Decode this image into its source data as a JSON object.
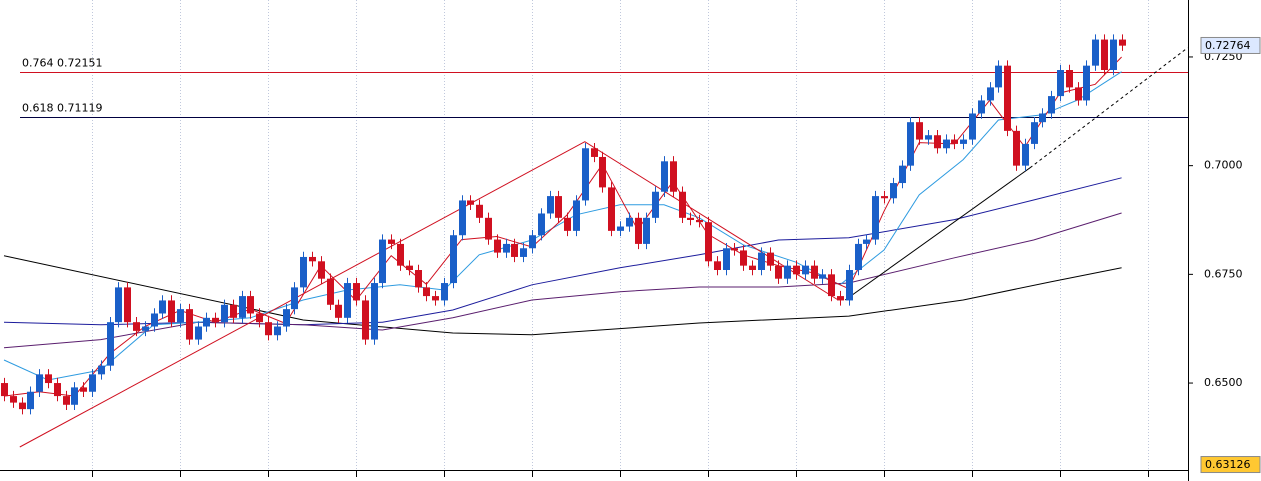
{
  "chart_data": {
    "type": "candlestick",
    "up_color": "#1a5fc8",
    "down_color": "#d01020",
    "open": [
      0.65,
      0.647,
      0.6455,
      0.644,
      0.648,
      0.652,
      0.65,
      0.647,
      0.645,
      0.649,
      0.648,
      0.652,
      0.654,
      0.664,
      0.672,
      0.664,
      0.662,
      0.663,
      0.666,
      0.669,
      0.664,
      0.667,
      0.66,
      0.663,
      0.665,
      0.664,
      0.668,
      0.665,
      0.67,
      0.666,
      0.664,
      0.661,
      0.663,
      0.667,
      0.672,
      0.679,
      0.678,
      0.674,
      0.668,
      0.665,
      0.673,
      0.669,
      0.66,
      0.673,
      0.683,
      0.682,
      0.677,
      0.676,
      0.672,
      0.67,
      0.669,
      0.673,
      0.684,
      0.692,
      0.691,
      0.688,
      0.683,
      0.68,
      0.682,
      0.679,
      0.681,
      0.684,
      0.689,
      0.693,
      0.688,
      0.685,
      0.692,
      0.704,
      0.702,
      0.695,
      0.685,
      0.686,
      0.688,
      0.682,
      0.688,
      0.694,
      0.701,
      0.694,
      0.688,
      0.6875,
      0.687,
      0.678,
      0.676,
      0.681,
      0.6805,
      0.677,
      0.676,
      0.68,
      0.677,
      0.674,
      0.677,
      0.675,
      0.677,
      0.674,
      0.675,
      0.67,
      0.669,
      0.676,
      0.682,
      0.683,
      0.693,
      0.6925,
      0.696,
      0.7,
      0.71,
      0.706,
      0.707,
      0.704,
      0.706,
      0.705,
      0.706,
      0.712,
      0.715,
      0.718,
      0.723,
      0.708,
      0.7,
      0.705,
      0.71,
      0.712,
      0.716,
      0.722,
      0.718,
      0.715,
      0.723,
      0.729,
      0.722,
      0.729
    ],
    "high": [
      0.6512,
      0.6482,
      0.6467,
      0.6492,
      0.6532,
      0.6532,
      0.6512,
      0.6482,
      0.6502,
      0.6502,
      0.6532,
      0.6552,
      0.6652,
      0.6732,
      0.6732,
      0.6652,
      0.6642,
      0.6672,
      0.6702,
      0.6702,
      0.6682,
      0.6682,
      0.6642,
      0.6662,
      0.6662,
      0.6692,
      0.6692,
      0.6712,
      0.6712,
      0.6672,
      0.6652,
      0.6642,
      0.6682,
      0.6732,
      0.6802,
      0.6802,
      0.6792,
      0.6752,
      0.6692,
      0.6742,
      0.6742,
      0.6702,
      0.6742,
      0.6842,
      0.6842,
      0.6832,
      0.6782,
      0.6772,
      0.6732,
      0.6712,
      0.6742,
      0.6852,
      0.6932,
      0.6932,
      0.6922,
      0.6892,
      0.6842,
      0.6832,
      0.6832,
      0.6822,
      0.6852,
      0.6902,
      0.6942,
      0.6942,
      0.6892,
      0.6932,
      0.7052,
      0.7052,
      0.7032,
      0.6962,
      0.6872,
      0.6892,
      0.6892,
      0.6892,
      0.6952,
      0.7022,
      0.7022,
      0.6952,
      0.6892,
      0.6887,
      0.6882,
      0.6792,
      0.6822,
      0.6822,
      0.6817,
      0.6782,
      0.6812,
      0.6812,
      0.6782,
      0.6782,
      0.6782,
      0.6782,
      0.6782,
      0.6762,
      0.6762,
      0.6712,
      0.6772,
      0.6832,
      0.6842,
      0.6942,
      0.6942,
      0.6972,
      0.7012,
      0.7112,
      0.7112,
      0.7082,
      0.7082,
      0.7072,
      0.7072,
      0.7072,
      0.7132,
      0.7162,
      0.7192,
      0.7242,
      0.7242,
      0.7092,
      0.7062,
      0.7112,
      0.7132,
      0.7172,
      0.7232,
      0.7232,
      0.7192,
      0.7242,
      0.7302,
      0.7302,
      0.7302,
      0.7302
    ],
    "low": [
      0.6458,
      0.6443,
      0.6428,
      0.6428,
      0.6468,
      0.6488,
      0.6458,
      0.6438,
      0.6438,
      0.6468,
      0.6468,
      0.6508,
      0.6528,
      0.6628,
      0.6628,
      0.6608,
      0.6608,
      0.6618,
      0.6648,
      0.6628,
      0.6628,
      0.6588,
      0.6588,
      0.6618,
      0.6628,
      0.6628,
      0.6638,
      0.6638,
      0.6648,
      0.6628,
      0.6598,
      0.6598,
      0.6618,
      0.6658,
      0.6708,
      0.6768,
      0.6728,
      0.6668,
      0.6638,
      0.6638,
      0.6678,
      0.6588,
      0.6588,
      0.6718,
      0.6808,
      0.6758,
      0.6748,
      0.6708,
      0.6688,
      0.6678,
      0.6678,
      0.6718,
      0.6828,
      0.6898,
      0.6868,
      0.6818,
      0.6788,
      0.6788,
      0.6778,
      0.6778,
      0.6798,
      0.6828,
      0.6878,
      0.6868,
      0.6838,
      0.6838,
      0.6908,
      0.7008,
      0.6938,
      0.6838,
      0.6838,
      0.6848,
      0.6808,
      0.6808,
      0.6868,
      0.6928,
      0.6928,
      0.6868,
      0.6863,
      0.6858,
      0.6768,
      0.6748,
      0.6748,
      0.6793,
      0.6758,
      0.6748,
      0.6748,
      0.6758,
      0.6728,
      0.6728,
      0.6738,
      0.6738,
      0.6728,
      0.6728,
      0.6688,
      0.6678,
      0.6678,
      0.6748,
      0.6808,
      0.6818,
      0.6913,
      0.6913,
      0.6948,
      0.6988,
      0.7048,
      0.7048,
      0.7028,
      0.7028,
      0.7038,
      0.7038,
      0.7048,
      0.7108,
      0.7138,
      0.7168,
      0.7068,
      0.6988,
      0.6988,
      0.7038,
      0.7088,
      0.7108,
      0.7148,
      0.7168,
      0.7138,
      0.7138,
      0.7218,
      0.7208,
      0.7208,
      0.7264
    ],
    "close": [
      0.647,
      0.6455,
      0.644,
      0.648,
      0.652,
      0.65,
      0.647,
      0.645,
      0.649,
      0.648,
      0.652,
      0.654,
      0.664,
      0.672,
      0.664,
      0.662,
      0.663,
      0.666,
      0.669,
      0.664,
      0.667,
      0.66,
      0.663,
      0.665,
      0.664,
      0.668,
      0.665,
      0.67,
      0.666,
      0.664,
      0.661,
      0.663,
      0.667,
      0.672,
      0.679,
      0.678,
      0.674,
      0.668,
      0.665,
      0.673,
      0.669,
      0.66,
      0.673,
      0.683,
      0.682,
      0.677,
      0.676,
      0.672,
      0.67,
      0.669,
      0.673,
      0.684,
      0.692,
      0.691,
      0.688,
      0.683,
      0.68,
      0.682,
      0.679,
      0.681,
      0.684,
      0.689,
      0.693,
      0.688,
      0.685,
      0.692,
      0.704,
      0.702,
      0.695,
      0.685,
      0.686,
      0.688,
      0.682,
      0.688,
      0.694,
      0.701,
      0.694,
      0.688,
      0.6875,
      0.687,
      0.678,
      0.676,
      0.681,
      0.6805,
      0.677,
      0.676,
      0.68,
      0.677,
      0.674,
      0.677,
      0.675,
      0.677,
      0.674,
      0.675,
      0.67,
      0.669,
      0.676,
      0.682,
      0.683,
      0.693,
      0.6925,
      0.696,
      0.7,
      0.71,
      0.706,
      0.707,
      0.704,
      0.706,
      0.705,
      0.706,
      0.712,
      0.715,
      0.718,
      0.723,
      0.708,
      0.7,
      0.705,
      0.71,
      0.712,
      0.716,
      0.722,
      0.718,
      0.715,
      0.723,
      0.729,
      0.722,
      0.729,
      0.7276
    ],
    "xlim": [
      -0.45,
      134.55
    ],
    "xticks": [
      10,
      20,
      30,
      40,
      50,
      60,
      70,
      80,
      90,
      100,
      110,
      120,
      130
    ],
    "ylim": [
      0.63,
      0.7381
    ],
    "yticks": [
      {
        "value": 0.65,
        "label": "0.6500"
      },
      {
        "value": 0.675,
        "label": "0.6750"
      },
      {
        "value": 0.7,
        "label": "0.7000"
      },
      {
        "value": 0.725,
        "label": "0.7250"
      }
    ],
    "grid": "x",
    "overlays": [
      {
        "color": "#000000",
        "x": [
          0,
          34,
          51,
          60,
          79,
          96,
          109,
          119,
          127
        ],
        "values": [
          0.6793,
          0.6645,
          0.6615,
          0.6611,
          0.6638,
          0.6654,
          0.6691,
          0.6733,
          0.6765
        ]
      },
      {
        "color": "#1c1c9c",
        "x": [
          0,
          11,
          22,
          34,
          43,
          51,
          60,
          70,
          79,
          88,
          96,
          108,
          117,
          127
        ],
        "values": [
          0.664,
          0.6634,
          0.664,
          0.6634,
          0.664,
          0.6668,
          0.6726,
          0.6765,
          0.6795,
          0.6829,
          0.6834,
          0.6876,
          0.6921,
          0.6972
        ]
      },
      {
        "color": "#5a1e6e",
        "x": [
          0,
          11,
          22,
          34,
          43,
          51,
          60,
          70,
          79,
          88,
          96,
          108,
          117,
          127
        ],
        "values": [
          0.6581,
          0.66,
          0.664,
          0.6634,
          0.6622,
          0.665,
          0.6691,
          0.671,
          0.6721,
          0.6721,
          0.673,
          0.6788,
          0.6829,
          0.6891
        ]
      },
      {
        "color": "#2e9be0",
        "x": [
          0,
          5,
          11,
          17,
          22,
          28,
          34,
          39,
          45,
          50,
          54,
          60,
          65,
          70,
          75,
          79,
          84,
          90,
          95,
          100,
          104,
          109,
          113,
          118,
          122,
          127
        ],
        "values": [
          0.6553,
          0.6507,
          0.653,
          0.6634,
          0.664,
          0.665,
          0.6691,
          0.6714,
          0.6726,
          0.6714,
          0.6795,
          0.6829,
          0.6887,
          0.691,
          0.691,
          0.688,
          0.6818,
          0.6778,
          0.6726,
          0.6806,
          0.6933,
          0.7014,
          0.7105,
          0.7117,
          0.7151,
          0.7216
        ]
      },
      {
        "color": "#d01020",
        "x": [
          0,
          4,
          8,
          12,
          16,
          20,
          24,
          28,
          32,
          36,
          40,
          44,
          48,
          52,
          56,
          60,
          64,
          68,
          72,
          76,
          80,
          84,
          88,
          92,
          96,
          100,
          104,
          108,
          112,
          116,
          120,
          124,
          127
        ],
        "values": [
          0.647,
          0.648,
          0.647,
          0.6567,
          0.663,
          0.6667,
          0.664,
          0.667,
          0.6637,
          0.677,
          0.669,
          0.6793,
          0.6727,
          0.683,
          0.6837,
          0.6813,
          0.6887,
          0.7003,
          0.6853,
          0.6963,
          0.6842,
          0.6795,
          0.677,
          0.6753,
          0.6717,
          0.6895,
          0.7053,
          0.705,
          0.715,
          0.7043,
          0.7167,
          0.7187,
          0.725
        ]
      }
    ],
    "trendlines": [
      {
        "color": "#d01020",
        "x": [
          1.8,
          66,
          94.8
        ],
        "values": [
          0.6353,
          0.7055,
          0.6691
        ]
      },
      {
        "color": "#000000",
        "x": [
          95.6,
          116.6
        ],
        "values": [
          0.6691,
          0.6995
        ]
      },
      {
        "color": "#000000",
        "dashed": true,
        "x": [
          116.6,
          134.5
        ],
        "values": [
          0.6995,
          0.7271
        ]
      }
    ],
    "levels": [
      {
        "label": "0.764 0.72151",
        "value": 0.72151,
        "color": "#d01020"
      },
      {
        "label": "0.618 0.71119",
        "value": 0.71119,
        "color": "#000040"
      }
    ],
    "price_tags": [
      {
        "label": "0.72764",
        "value": 0.72764,
        "color": "#dce8ff"
      },
      {
        "label": "0.63126",
        "value": 0.63126,
        "color": "#ffc832"
      }
    ]
  }
}
